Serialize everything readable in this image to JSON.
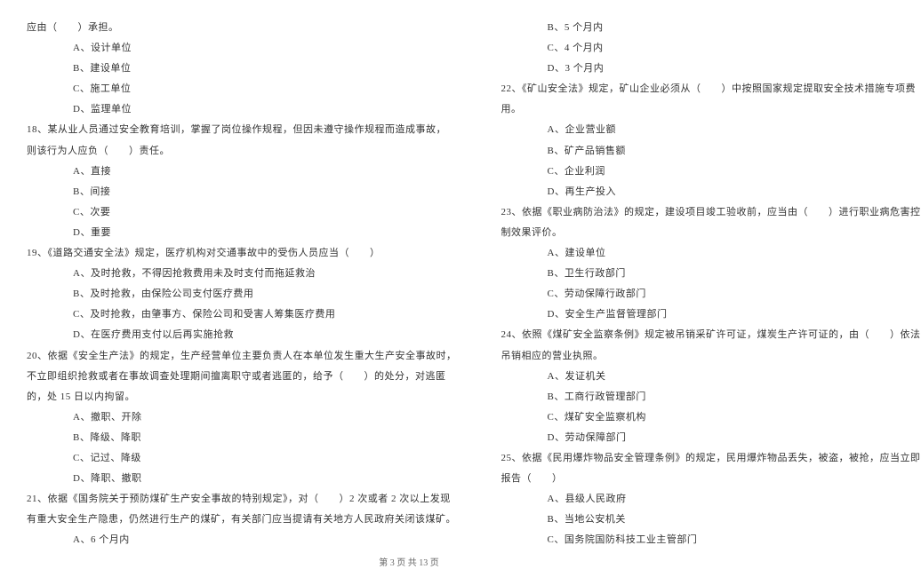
{
  "footer": "第 3 页 共 13 页",
  "left_column": [
    {
      "text": "应由（　　）承担。",
      "indent": 0
    },
    {
      "text": "A、设计单位",
      "indent": 2
    },
    {
      "text": "B、建设单位",
      "indent": 2
    },
    {
      "text": "C、施工单位",
      "indent": 2
    },
    {
      "text": "D、监理单位",
      "indent": 2
    },
    {
      "text": "18、某从业人员通过安全教育培训，掌握了岗位操作规程，但因未遵守操作规程而造成事故，",
      "indent": 0
    },
    {
      "text": "则该行为人应负（　　）责任。",
      "indent": 0
    },
    {
      "text": "A、直接",
      "indent": 2
    },
    {
      "text": "B、间接",
      "indent": 2
    },
    {
      "text": "C、次要",
      "indent": 2
    },
    {
      "text": "D、重要",
      "indent": 2
    },
    {
      "text": "19、《道路交通安全法》规定，医疗机构对交通事故中的受伤人员应当（　　）",
      "indent": 0
    },
    {
      "text": "A、及时抢救，不得因抢救费用未及时支付而拖延救治",
      "indent": 2
    },
    {
      "text": "B、及时抢救，由保险公司支付医疗费用",
      "indent": 2
    },
    {
      "text": "C、及时抢救，由肇事方、保险公司和受害人筹集医疗费用",
      "indent": 2
    },
    {
      "text": "D、在医疗费用支付以后再实施抢救",
      "indent": 2
    },
    {
      "text": "20、依据《安全生产法》的规定，生产经营单位主要负责人在本单位发生重大生产安全事故时，",
      "indent": 0
    },
    {
      "text": "不立即组织抢救或者在事故调查处理期间擅离职守或者逃匿的，给予（　　）的处分，对逃匿",
      "indent": 0
    },
    {
      "text": "的，处 15 日以内拘留。",
      "indent": 0
    },
    {
      "text": "A、撤职、开除",
      "indent": 2
    },
    {
      "text": "B、降级、降职",
      "indent": 2
    },
    {
      "text": "C、记过、降级",
      "indent": 2
    },
    {
      "text": "D、降职、撤职",
      "indent": 2
    },
    {
      "text": "21、依据《国务院关于预防煤矿生产安全事故的特别规定》，对（　　）2 次或者 2 次以上发现",
      "indent": 0
    },
    {
      "text": "有重大安全生产隐患，仍然进行生产的煤矿，有关部门应当提请有关地方人民政府关闭该煤矿。",
      "indent": 0
    },
    {
      "text": "A、6 个月内",
      "indent": 2
    }
  ],
  "right_column": [
    {
      "text": "B、5 个月内",
      "indent": 2
    },
    {
      "text": "C、4 个月内",
      "indent": 2
    },
    {
      "text": "D、3 个月内",
      "indent": 2
    },
    {
      "text": "22、《矿山安全法》规定，矿山企业必须从（　　）中按照国家规定提取安全技术措施专项费",
      "indent": 0
    },
    {
      "text": "用。",
      "indent": 0
    },
    {
      "text": "A、企业营业额",
      "indent": 2
    },
    {
      "text": "B、矿产品销售额",
      "indent": 2
    },
    {
      "text": "C、企业利润",
      "indent": 2
    },
    {
      "text": "D、再生产投入",
      "indent": 2
    },
    {
      "text": "23、依据《职业病防治法》的规定，建设项目竣工验收前，应当由（　　）进行职业病危害控",
      "indent": 0
    },
    {
      "text": "制效果评价。",
      "indent": 0
    },
    {
      "text": "A、建设单位",
      "indent": 2
    },
    {
      "text": "B、卫生行政部门",
      "indent": 2
    },
    {
      "text": "C、劳动保障行政部门",
      "indent": 2
    },
    {
      "text": "D、安全生产监督管理部门",
      "indent": 2
    },
    {
      "text": "24、依照《煤矿安全监察条例》规定被吊销采矿许可证，煤炭生产许可证的，由（　　）依法",
      "indent": 0
    },
    {
      "text": "吊销相应的营业执照。",
      "indent": 0
    },
    {
      "text": "A、发证机关",
      "indent": 2
    },
    {
      "text": "B、工商行政管理部门",
      "indent": 2
    },
    {
      "text": "C、煤矿安全监察机构",
      "indent": 2
    },
    {
      "text": "D、劳动保障部门",
      "indent": 2
    },
    {
      "text": "25、依据《民用爆炸物品安全管理条例》的规定，民用爆炸物品丢失，被盗，被抢，应当立即",
      "indent": 0
    },
    {
      "text": "报告（　　）",
      "indent": 0
    },
    {
      "text": "A、县级人民政府",
      "indent": 2
    },
    {
      "text": "B、当地公安机关",
      "indent": 2
    },
    {
      "text": "C、国务院国防科技工业主管部门",
      "indent": 2
    }
  ]
}
